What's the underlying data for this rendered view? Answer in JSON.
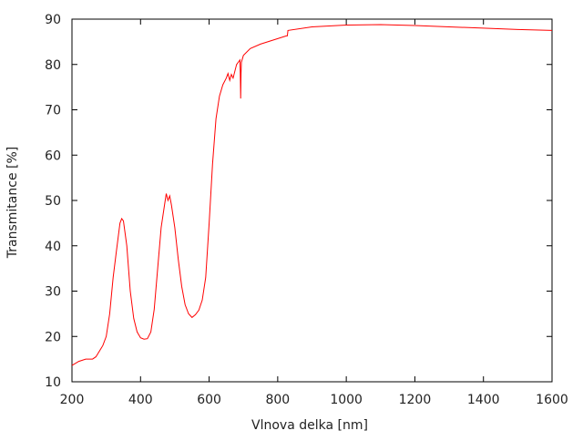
{
  "chart_data": {
    "type": "line",
    "title": "",
    "xlabel": "Vlnova delka [nm]",
    "ylabel": "Transmitance [%]",
    "xlim": [
      200,
      1600
    ],
    "ylim": [
      10,
      90
    ],
    "xticks": [
      "200",
      "400",
      "600",
      "800",
      "1000",
      "1200",
      "1400",
      "1600"
    ],
    "yticks": [
      "10",
      "20",
      "30",
      "40",
      "50",
      "60",
      "70",
      "80",
      "90"
    ],
    "grid": false,
    "legend": "none",
    "series": [
      {
        "color": "#ff0000",
        "x": [
          200,
          220,
          240,
          260,
          270,
          290,
          300,
          310,
          320,
          330,
          340,
          345,
          350,
          360,
          370,
          380,
          390,
          400,
          410,
          420,
          430,
          440,
          450,
          460,
          470,
          475,
          480,
          485,
          490,
          500,
          510,
          520,
          530,
          540,
          550,
          560,
          570,
          580,
          590,
          600,
          610,
          620,
          630,
          640,
          650,
          655,
          660,
          665,
          670,
          680,
          690,
          691,
          692,
          693,
          694,
          700,
          720,
          750,
          800,
          825,
          828,
          830,
          900,
          1000,
          1100,
          1200,
          1300,
          1400,
          1500,
          1600
        ],
        "y": [
          13.6,
          14.5,
          15.0,
          15.0,
          15.5,
          18,
          20,
          25,
          33,
          39,
          45,
          46,
          45.5,
          40,
          30,
          24,
          21,
          19.7,
          19.4,
          19.5,
          21,
          26,
          35,
          44,
          49,
          51.5,
          50,
          51,
          49,
          44,
          37,
          31,
          27,
          25,
          24.2,
          24.8,
          25.8,
          28,
          33,
          45,
          58,
          68,
          73,
          75.5,
          77,
          78,
          76.5,
          77.8,
          77,
          80,
          81,
          78,
          72.5,
          78,
          80.5,
          82,
          83.5,
          84.5,
          85.7,
          86.3,
          86.3,
          87.5,
          88.3,
          88.7,
          88.8,
          88.6,
          88.3,
          88.0,
          87.7,
          87.5
        ]
      }
    ]
  }
}
